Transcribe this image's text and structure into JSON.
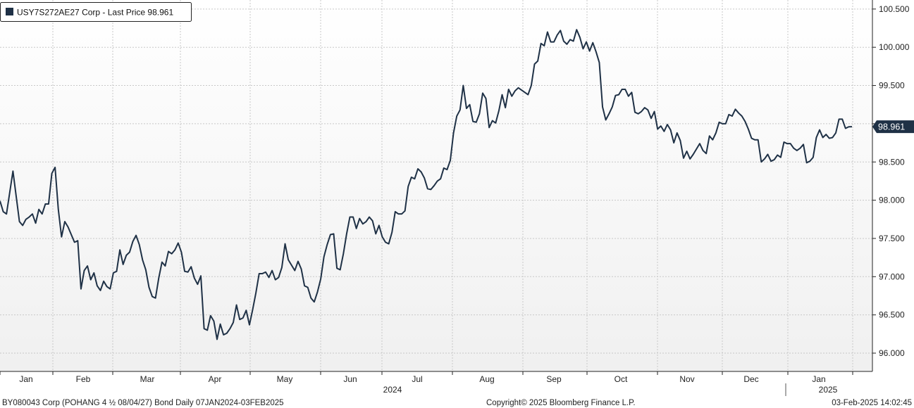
{
  "legend": {
    "label": "USY7S272AE27 Corp - Last Price 98.961",
    "swatch_color": "#1f3146"
  },
  "last_price_tag": "98.961",
  "footer": {
    "left": "BY080043 Corp (POHANG 4 ½ 08/04/27) Bond  Daily 07JAN2024-03FEB2025",
    "center": "Copyright© 2025 Bloomberg Finance L.P.",
    "right": "03-Feb-2025 14:02:45"
  },
  "colors": {
    "line": "#1f3146",
    "grid": "#c8c8c8",
    "background_top": "#ffffff",
    "background_bottom": "#f0f0f0"
  },
  "chart_data": {
    "type": "line",
    "ylim": [
      95.8,
      100.6
    ],
    "y_ticks": [
      "96.000",
      "96.500",
      "97.000",
      "97.500",
      "98.000",
      "98.500",
      "99.000",
      "99.500",
      "100.000",
      "100.500"
    ],
    "months": [
      "Jan",
      "Feb",
      "Mar",
      "Apr",
      "May",
      "Jun",
      "Jul",
      "Aug",
      "Sep",
      "Oct",
      "Nov",
      "Dec",
      "Jan"
    ],
    "years": [
      "2024",
      "2025"
    ],
    "grid": true,
    "series": [
      {
        "values": [
          97.99,
          97.85,
          97.82,
          98.1,
          98.38,
          98.05,
          97.72,
          97.67,
          97.75,
          97.78,
          97.82,
          97.7,
          97.88,
          97.82,
          97.95,
          97.95,
          98.35,
          98.43,
          97.88,
          97.52,
          97.72,
          97.65,
          97.55,
          97.45,
          97.47,
          96.84,
          97.08,
          97.14,
          96.96,
          97.05,
          96.88,
          96.82,
          96.94,
          96.87,
          96.84,
          97.05,
          97.07,
          97.35,
          97.16,
          97.28,
          97.32,
          97.46,
          97.54,
          97.42,
          97.22,
          97.09,
          96.86,
          96.74,
          96.72,
          96.98,
          97.19,
          97.14,
          97.33,
          97.3,
          97.35,
          97.44,
          97.32,
          97.07,
          97.06,
          97.13,
          96.98,
          96.9,
          97.01,
          96.32,
          96.3,
          96.49,
          96.42,
          96.18,
          96.38,
          96.24,
          96.26,
          96.32,
          96.4,
          96.63,
          96.44,
          96.46,
          96.56,
          96.37,
          96.57,
          96.79,
          97.04,
          97.04,
          97.06,
          96.99,
          97.08,
          96.96,
          96.99,
          97.12,
          97.43,
          97.22,
          97.15,
          97.08,
          97.2,
          97.1,
          96.88,
          96.86,
          96.72,
          96.67,
          96.8,
          96.97,
          97.26,
          97.42,
          97.55,
          97.56,
          97.11,
          97.09,
          97.3,
          97.56,
          97.78,
          97.78,
          97.63,
          97.76,
          97.69,
          97.72,
          97.78,
          97.73,
          97.56,
          97.67,
          97.52,
          97.45,
          97.43,
          97.58,
          97.85,
          97.82,
          97.82,
          97.86,
          98.18,
          98.3,
          98.28,
          98.41,
          98.37,
          98.29,
          98.15,
          98.14,
          98.19,
          98.25,
          98.28,
          98.42,
          98.4,
          98.52,
          98.88,
          99.1,
          99.18,
          99.5,
          99.2,
          99.25,
          99.03,
          99.02,
          99.13,
          99.4,
          99.33,
          98.95,
          99.04,
          99.01,
          99.17,
          99.38,
          99.21,
          99.45,
          99.36,
          99.43,
          99.47,
          99.44,
          99.41,
          99.38,
          99.5,
          99.78,
          99.82,
          100.05,
          100.02,
          100.2,
          100.07,
          100.07,
          100.16,
          100.22,
          100.08,
          100.04,
          100.1,
          100.08,
          100.23,
          100.13,
          99.98,
          100.07,
          99.95,
          100.06,
          99.94,
          99.8,
          99.22,
          99.05,
          99.13,
          99.22,
          99.37,
          99.38,
          99.45,
          99.45,
          99.36,
          99.41,
          99.15,
          99.13,
          99.16,
          99.21,
          99.18,
          99.07,
          99.16,
          98.93,
          98.97,
          98.9,
          98.99,
          98.92,
          98.75,
          98.88,
          98.78,
          98.55,
          98.64,
          98.54,
          98.6,
          98.67,
          98.74,
          98.65,
          98.61,
          98.84,
          98.79,
          98.88,
          99.02,
          99.0,
          99.0,
          99.12,
          99.1,
          99.19,
          99.14,
          99.1,
          99.03,
          98.93,
          98.81,
          98.79,
          98.79,
          98.5,
          98.54,
          98.6,
          98.51,
          98.53,
          98.59,
          98.56,
          98.76,
          98.74,
          98.74,
          98.68,
          98.65,
          98.68,
          98.73,
          98.49,
          98.51,
          98.56,
          98.82,
          98.92,
          98.82,
          98.86,
          98.81,
          98.82,
          98.88,
          99.06,
          99.06,
          98.94,
          98.96,
          98.961
        ]
      }
    ]
  }
}
